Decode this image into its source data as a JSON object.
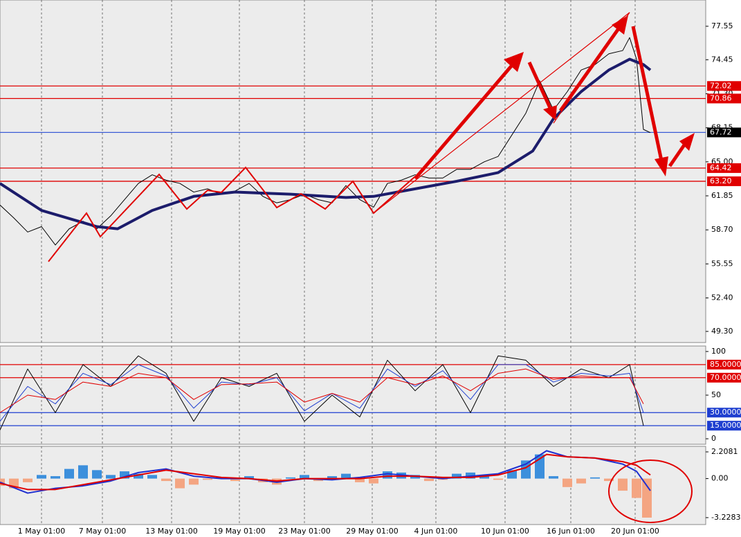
{
  "chart_data": [
    {
      "type": "line",
      "xlim": [
        0,
        102
      ],
      "ylim": [
        48.27,
        79.98
      ],
      "yticks": [
        77.55,
        74.45,
        {
          "value": 71.3,
          "label": "71.30"
        },
        68.15,
        {
          "value": 65,
          "label": "65.00"
        },
        61.85,
        {
          "value": 58.7,
          "label": "58.70"
        },
        55.55,
        {
          "value": 52.4,
          "label": "52.40"
        },
        {
          "value": 49.3,
          "label": "49.30"
        }
      ],
      "levels": [
        {
          "value": 72.02,
          "color": "#e00000"
        },
        {
          "value": 70.86,
          "color": "#e00000"
        },
        {
          "value": 67.72,
          "color": "#3a5bd6",
          "label_color": "#000000"
        },
        {
          "value": 64.42,
          "color": "#e00000"
        },
        {
          "value": 63.2,
          "label": "63.20",
          "color": "#e00000"
        }
      ],
      "series": [
        {
          "color": "#000000",
          "width": 1,
          "x": [
            0,
            2,
            4,
            6,
            8,
            10,
            12,
            14,
            16,
            18,
            20,
            22,
            24,
            26,
            28,
            30,
            32,
            34,
            36,
            38,
            40,
            42,
            44,
            46,
            48,
            50,
            52,
            54,
            56,
            58,
            60,
            62,
            64,
            66,
            68,
            70,
            72,
            74,
            76,
            78,
            80,
            82,
            84,
            86,
            88,
            90,
            91,
            92,
            93,
            94
          ],
          "values": [
            61.0,
            59.8,
            58.5,
            59.0,
            57.3,
            58.8,
            59.5,
            58.8,
            60.0,
            61.5,
            63.0,
            63.8,
            63.3,
            63.0,
            62.2,
            62.5,
            62.0,
            62.3,
            63.0,
            61.8,
            61.2,
            61.5,
            62.0,
            61.5,
            61.2,
            62.8,
            61.5,
            60.8,
            63.0,
            63.3,
            63.8,
            63.5,
            63.5,
            64.3,
            64.3,
            65.0,
            65.5,
            67.5,
            69.5,
            72.5,
            69.8,
            71.5,
            73.5,
            74.0,
            75.0,
            75.3,
            76.5,
            74.5,
            68.0,
            67.7
          ]
        },
        {
          "color": "#1c1c6b",
          "width": 4,
          "x": [
            0,
            6,
            14,
            17,
            22,
            28,
            34,
            42,
            50,
            54,
            60,
            66,
            72,
            77,
            80,
            84,
            88,
            91,
            93,
            94
          ],
          "values": [
            63.0,
            60.5,
            59.0,
            58.8,
            60.5,
            61.8,
            62.2,
            62.0,
            61.7,
            61.8,
            62.5,
            63.2,
            64.0,
            66.0,
            69.0,
            71.5,
            73.5,
            74.5,
            74.0,
            73.5
          ]
        }
      ]
    },
    {
      "type": "line",
      "xlim": [
        0,
        102
      ],
      "ylim": [
        -6.3,
        106.3
      ],
      "yticks": [
        100,
        50,
        0
      ],
      "levels": [
        {
          "value": 85,
          "label": "85.0000",
          "color": "#e00000"
        },
        {
          "value": 70,
          "label": "70.0000",
          "color": "#e00000"
        },
        {
          "value": 30,
          "label": "30.0000",
          "color": "#1f3fd0"
        },
        {
          "value": 15,
          "label": "15.0000",
          "color": "#1f3fd0"
        }
      ],
      "series": [
        {
          "color": "#000000",
          "width": 1,
          "x": [
            0,
            4,
            8,
            12,
            16,
            20,
            24,
            28,
            32,
            36,
            40,
            44,
            48,
            52,
            56,
            60,
            64,
            68,
            72,
            76,
            80,
            84,
            88,
            91,
            93
          ],
          "values": [
            10,
            80,
            30,
            85,
            60,
            95,
            75,
            20,
            70,
            60,
            75,
            20,
            50,
            25,
            90,
            55,
            85,
            30,
            95,
            90,
            60,
            80,
            70,
            85,
            15
          ]
        },
        {
          "color": "#1f3fd0",
          "width": 1,
          "x": [
            0,
            4,
            8,
            12,
            16,
            20,
            24,
            28,
            32,
            36,
            40,
            44,
            48,
            52,
            56,
            60,
            64,
            68,
            72,
            76,
            80,
            84,
            88,
            91,
            93
          ],
          "values": [
            20,
            60,
            40,
            75,
            62,
            85,
            72,
            35,
            65,
            62,
            70,
            32,
            52,
            35,
            80,
            60,
            78,
            45,
            85,
            85,
            65,
            75,
            72,
            75,
            30
          ]
        },
        {
          "color": "#e00000",
          "width": 1,
          "x": [
            0,
            4,
            8,
            12,
            16,
            20,
            24,
            28,
            32,
            36,
            40,
            44,
            48,
            52,
            56,
            60,
            64,
            68,
            72,
            76,
            80,
            84,
            88,
            91,
            93
          ],
          "values": [
            30,
            50,
            45,
            65,
            60,
            75,
            70,
            45,
            62,
            63,
            65,
            42,
            52,
            42,
            70,
            62,
            72,
            55,
            75,
            80,
            68,
            72,
            70,
            70,
            40
          ]
        }
      ]
    },
    {
      "type": "macd",
      "xlim": [
        0,
        102
      ],
      "ylim": [
        -3.8,
        2.666
      ],
      "yticks": [
        2.2081,
        {
          "value": 0,
          "label": "0.00"
        },
        -3.2283
      ],
      "xticks": [
        {
          "value": 6,
          "label": "1 May 01:00"
        },
        {
          "value": 14.8,
          "label": "7 May 01:00"
        },
        {
          "value": 24.8,
          "label": "13 May 01:00"
        },
        {
          "value": 34.6,
          "label": "19 May 01:00"
        },
        {
          "value": 44,
          "label": "23 May 01:00"
        },
        {
          "value": 53.8,
          "label": "29 May 01:00"
        },
        {
          "value": 63,
          "label": "4 Jun 01:00"
        },
        {
          "value": 73,
          "label": "10 Jun 01:00"
        },
        {
          "value": 82.5,
          "label": "16 Jun 01:00"
        },
        {
          "value": 91.8,
          "label": "20 Jun 01:00"
        }
      ],
      "histogram": {
        "positive_color": "#3c8fdc",
        "negative_color": "#f4a582",
        "x": [
          0,
          2,
          4,
          6,
          8,
          10,
          12,
          14,
          16,
          18,
          20,
          22,
          24,
          26,
          28,
          30,
          32,
          34,
          36,
          38,
          40,
          42,
          44,
          46,
          48,
          50,
          52,
          54,
          56,
          58,
          60,
          62,
          64,
          66,
          68,
          70,
          72,
          74,
          76,
          78,
          80,
          82,
          84,
          86,
          88,
          90,
          92,
          93.5
        ],
        "values": [
          -0.6,
          -0.8,
          -0.3,
          0.3,
          0.2,
          0.8,
          1.1,
          0.7,
          0.3,
          0.6,
          0.4,
          0.3,
          -0.2,
          -0.8,
          -0.5,
          -0.1,
          0.1,
          -0.2,
          0.2,
          -0.3,
          -0.5,
          0.1,
          0.3,
          -0.2,
          0.2,
          0.4,
          -0.3,
          -0.4,
          0.6,
          0.5,
          0.3,
          -0.2,
          -0.1,
          0.4,
          0.5,
          0.3,
          -0.1,
          0.7,
          1.5,
          2.0,
          0.2,
          -0.7,
          -0.4,
          0.1,
          -0.2,
          -1.0,
          -1.6,
          -3.2283
        ]
      },
      "series": [
        {
          "color": "#1f2fd0",
          "width": 2,
          "x": [
            0,
            4,
            8,
            12,
            16,
            20,
            24,
            28,
            32,
            36,
            40,
            44,
            48,
            52,
            56,
            60,
            64,
            68,
            72,
            76,
            79,
            82,
            86,
            90,
            92,
            94
          ],
          "values": [
            -0.3,
            -1.2,
            -0.8,
            -0.6,
            -0.2,
            0.5,
            0.8,
            0.2,
            0.0,
            0.0,
            -0.3,
            0.0,
            -0.1,
            0.1,
            0.4,
            0.2,
            0.0,
            0.2,
            0.4,
            1.2,
            2.3,
            1.8,
            1.7,
            1.2,
            0.6,
            -1.0
          ]
        },
        {
          "color": "#e00000",
          "width": 2,
          "x": [
            0,
            4,
            8,
            12,
            16,
            20,
            24,
            28,
            32,
            36,
            40,
            44,
            48,
            52,
            56,
            60,
            64,
            68,
            72,
            76,
            79,
            82,
            86,
            90,
            92,
            94
          ],
          "values": [
            -0.4,
            -0.9,
            -0.9,
            -0.5,
            -0.1,
            0.3,
            0.7,
            0.4,
            0.1,
            0.0,
            -0.2,
            0.0,
            0.0,
            0.0,
            0.2,
            0.2,
            0.1,
            0.1,
            0.3,
            0.9,
            2.0,
            1.8,
            1.7,
            1.4,
            1.1,
            0.3
          ]
        }
      ]
    }
  ]
}
